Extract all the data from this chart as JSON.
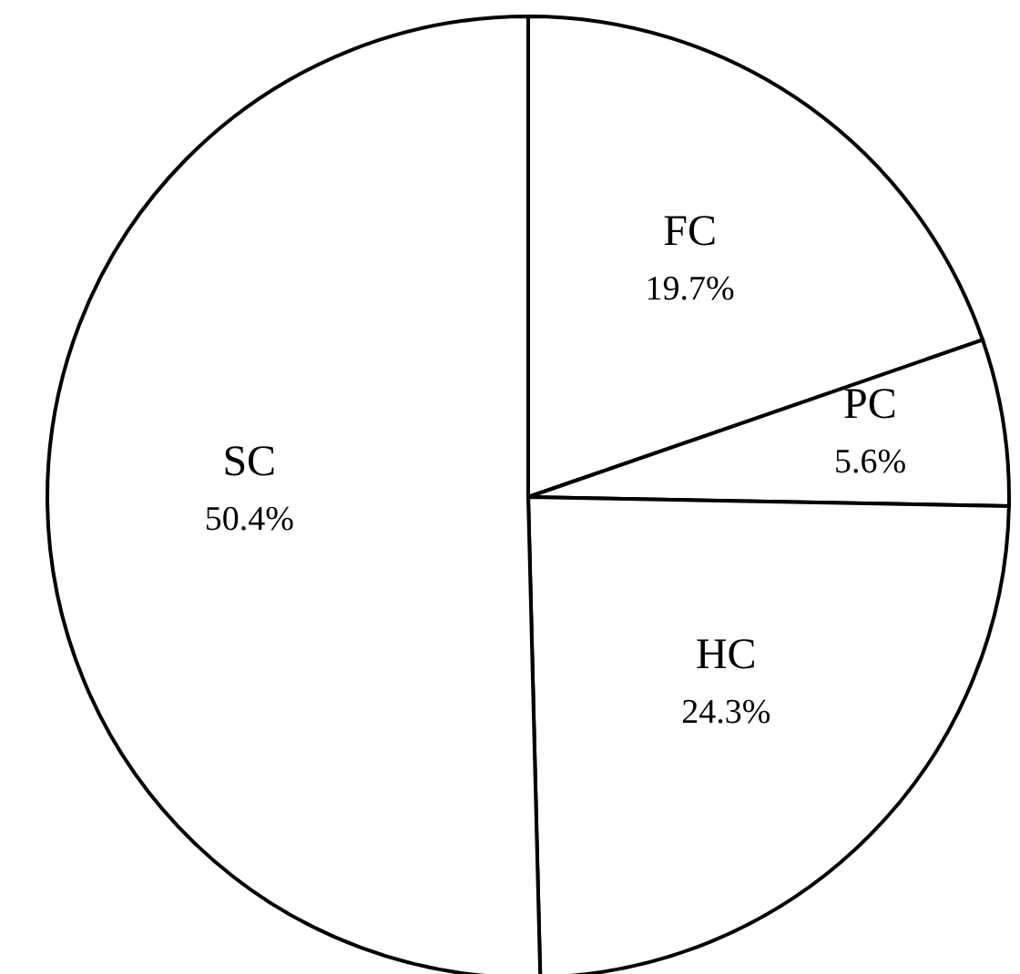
{
  "chart_data": {
    "type": "pie",
    "categories": [
      "FC",
      "PC",
      "HC",
      "SC"
    ],
    "values": [
      19.7,
      5.6,
      24.3,
      50.4
    ],
    "colors": [
      "#ffffff",
      "#ffffff",
      "#ffffff",
      "#ffffff"
    ],
    "value_labels": [
      "19.7%",
      "5.6%",
      "24.3%",
      "50.4%"
    ],
    "legend": false
  }
}
